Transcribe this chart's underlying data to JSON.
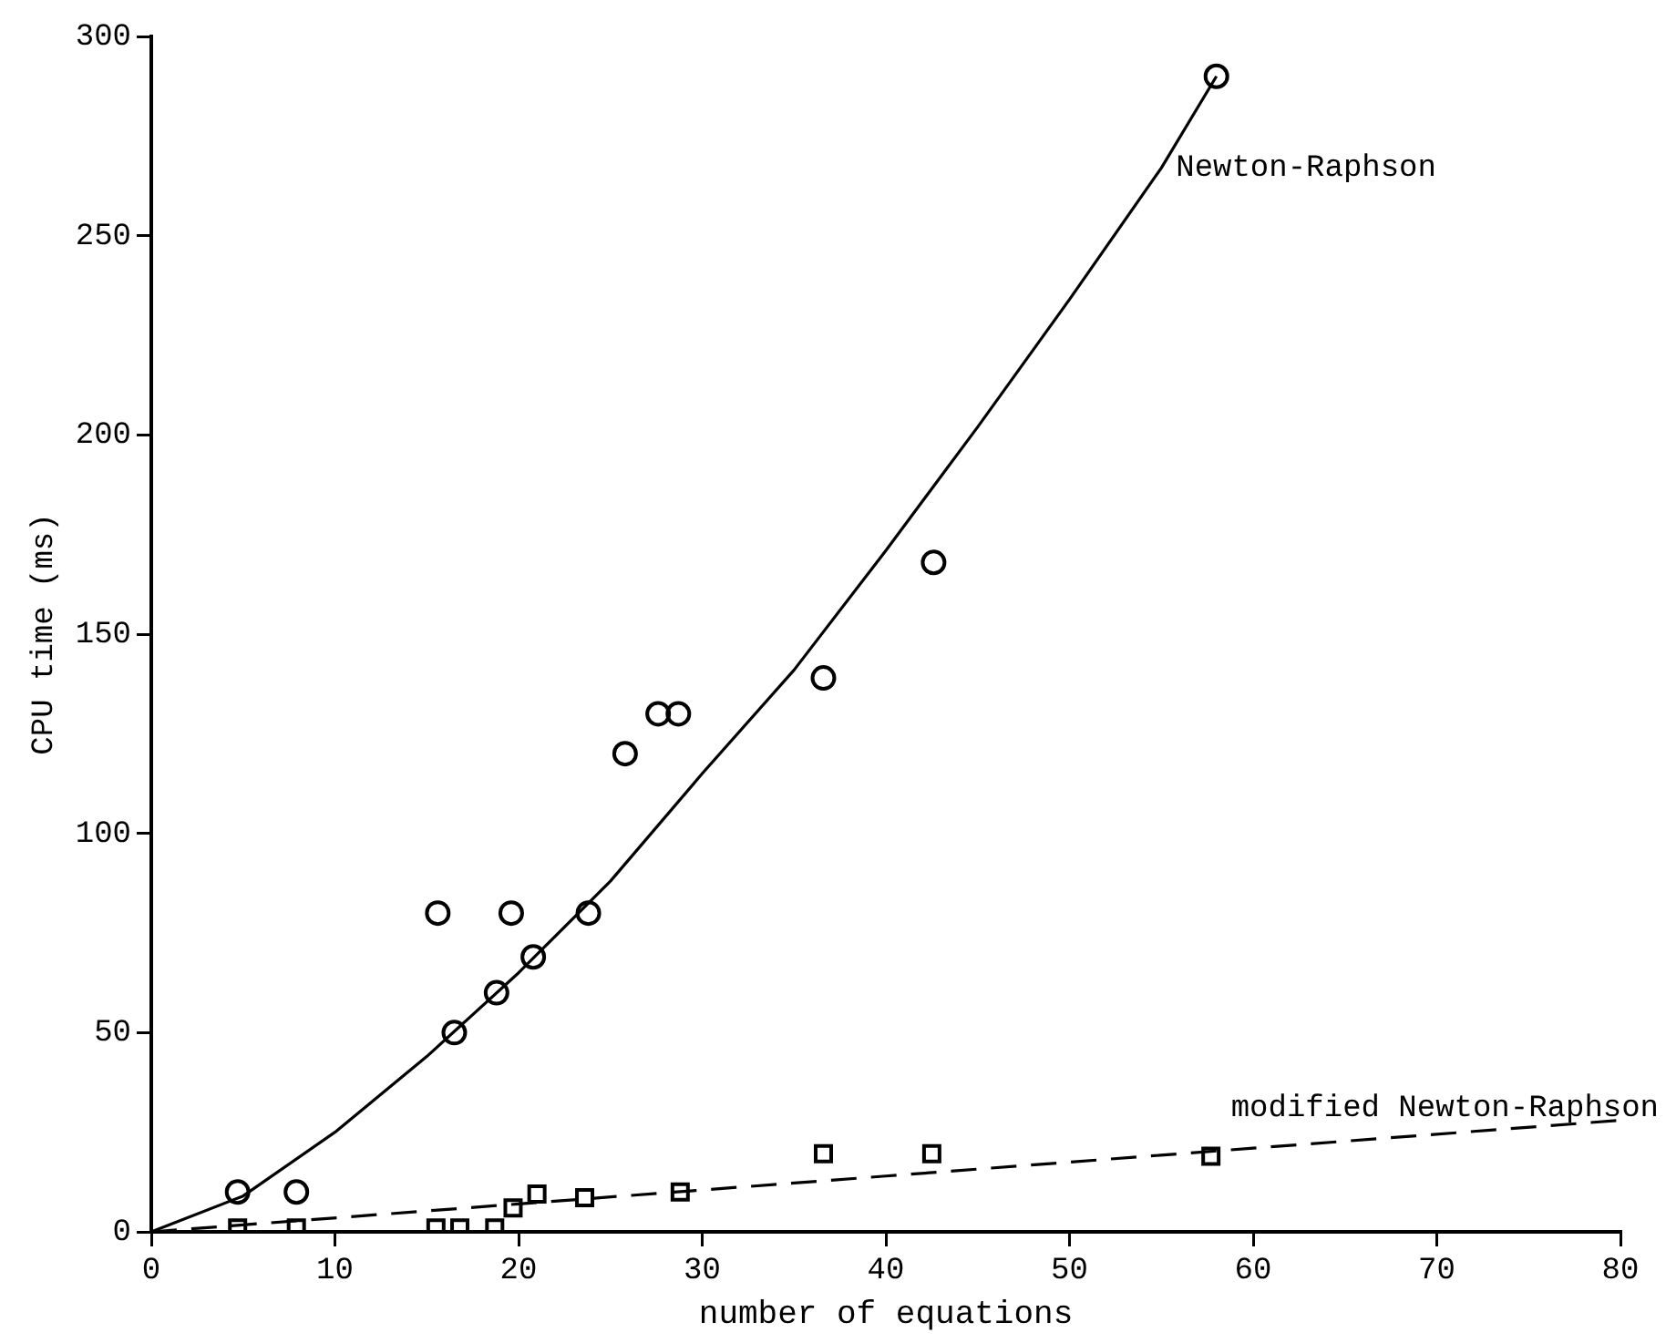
{
  "chart_data": {
    "type": "scatter",
    "xlabel": "number of equations",
    "ylabel": "CPU time (ms)",
    "xlim": [
      0,
      80
    ],
    "xticks": [
      0,
      10,
      20,
      30,
      40,
      50,
      60,
      70,
      80
    ],
    "ylim": [
      0,
      300
    ],
    "yticks": [
      0,
      50,
      100,
      150,
      200,
      250,
      300
    ],
    "grid": false,
    "legend": false,
    "series": [
      {
        "type": "scatter",
        "color": "#000000",
        "marker": "circle",
        "x": [
          4.7,
          7.9,
          15.6,
          16.5,
          18.8,
          19.6,
          20.8,
          23.8,
          25.8,
          27.6,
          28.7,
          36.6,
          42.6,
          58
        ],
        "values": [
          10,
          10,
          80,
          50,
          60,
          80,
          69,
          80,
          120,
          130,
          130,
          139,
          168,
          290
        ]
      },
      {
        "type": "scatter",
        "color": "#000000",
        "marker": "square",
        "x": [
          4.7,
          7.9,
          15.5,
          16.8,
          18.7,
          19.7,
          21,
          23.6,
          28.8,
          36.6,
          42.5,
          57.7
        ],
        "values": [
          1,
          1,
          1,
          1,
          1,
          6,
          9.5,
          8.6,
          10,
          19.6,
          19.6,
          19
        ]
      },
      {
        "type": "line",
        "name": "Newton-Raphson",
        "color": "#000000",
        "marker": "none",
        "line_style": "solid",
        "x": [
          0,
          5,
          10,
          15,
          20,
          25,
          30,
          35,
          40,
          45,
          50,
          55,
          58
        ],
        "values": [
          0,
          9,
          25,
          44,
          65,
          88,
          115,
          141,
          171,
          202,
          234,
          267,
          290
        ]
      },
      {
        "type": "line",
        "name": "modified Newton-Raphson",
        "color": "#000000",
        "marker": "none",
        "line_style": "dashed",
        "x": [
          0,
          20,
          40,
          60,
          80
        ],
        "values": [
          0,
          7,
          14,
          21,
          28
        ]
      }
    ]
  }
}
